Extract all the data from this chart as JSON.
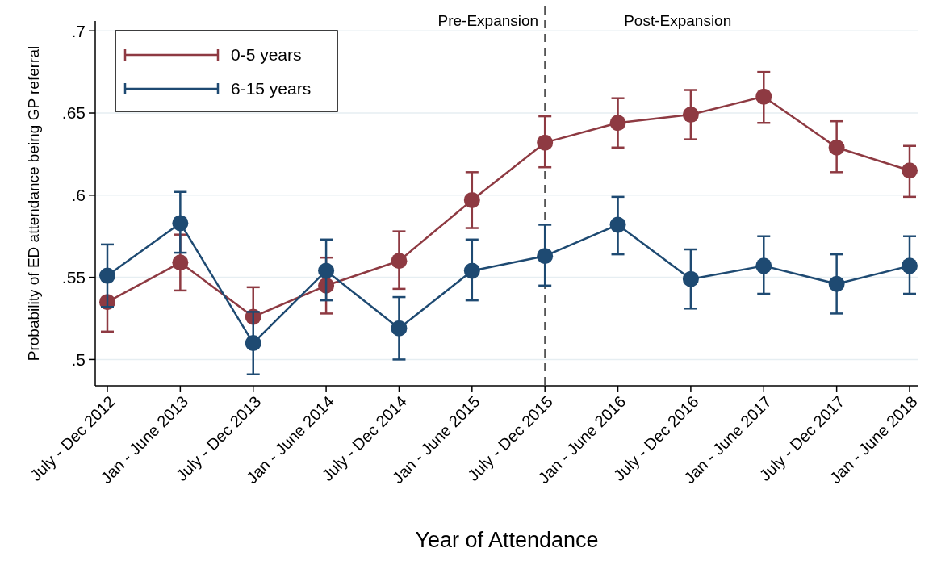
{
  "chart_data": {
    "type": "line",
    "xlabel": "Year of Attendance",
    "ylabel": "Probability of ED attendance being GP referral",
    "categories": [
      "July - Dec 2012",
      "Jan - June 2013",
      "July - Dec 2013",
      "Jan - June 2014",
      "July - Dec 2014",
      "Jan - June 2015",
      "July - Dec 2015",
      "Jan - June 2016",
      "July - Dec 2016",
      "Jan - June 2017",
      "July - Dec 2017",
      "Jan - June 2018"
    ],
    "series": [
      {
        "name": "0-5 years",
        "color": "#8e3a42",
        "values": [
          0.535,
          0.559,
          0.526,
          0.545,
          0.56,
          0.597,
          0.632,
          0.644,
          0.649,
          0.66,
          0.629,
          0.615
        ],
        "errors": [
          [
            0.517,
            0.535
          ],
          [
            0.542,
            0.576
          ],
          [
            0.526,
            0.544
          ],
          [
            0.528,
            0.562
          ],
          [
            0.543,
            0.578
          ],
          [
            0.58,
            0.614
          ],
          [
            0.617,
            0.648
          ],
          [
            0.629,
            0.659
          ],
          [
            0.634,
            0.664
          ],
          [
            0.644,
            0.675
          ],
          [
            0.614,
            0.645
          ],
          [
            0.599,
            0.63
          ]
        ]
      },
      {
        "name": "6-15 years",
        "color": "#1e4a72",
        "values": [
          0.551,
          0.583,
          0.51,
          0.554,
          0.519,
          0.554,
          0.563,
          0.582,
          0.549,
          0.557,
          0.546,
          0.557
        ],
        "errors": [
          [
            0.532,
            0.57
          ],
          [
            0.565,
            0.602
          ],
          [
            0.491,
            0.529
          ],
          [
            0.536,
            0.573
          ],
          [
            0.5,
            0.538
          ],
          [
            0.536,
            0.573
          ],
          [
            0.545,
            0.582
          ],
          [
            0.564,
            0.599
          ],
          [
            0.531,
            0.567
          ],
          [
            0.54,
            0.575
          ],
          [
            0.528,
            0.564
          ],
          [
            0.54,
            0.575
          ]
        ]
      }
    ],
    "ylim": [
      0.484,
      0.706
    ],
    "yticks": [
      {
        "value": 0.5,
        "label": ".5"
      },
      {
        "value": 0.55,
        "label": ".55"
      },
      {
        "value": 0.6,
        "label": ".6"
      },
      {
        "value": 0.65,
        "label": ".65"
      },
      {
        "value": 0.7,
        "label": ".7"
      }
    ],
    "ref_lines": [
      {
        "axis": "x",
        "value": "July - Dec 2015",
        "color": "#555555",
        "line_style": "dashed"
      }
    ],
    "annotations": [
      "Pre-Expansion",
      "Post-Expansion"
    ],
    "grid": "y",
    "legend": "top left",
    "marker": "circle",
    "line_style": "solid"
  }
}
